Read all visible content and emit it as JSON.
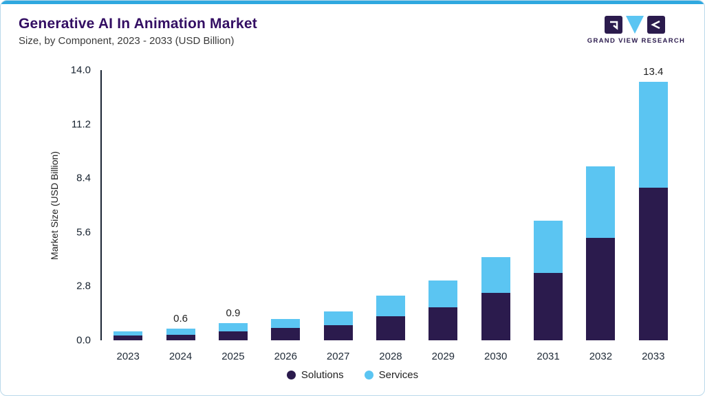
{
  "page": {
    "accent_color": "#2FA8DF",
    "border_color": "#B9D8EA"
  },
  "header": {
    "title": "Generative AI In Animation Market",
    "subtitle": "Size, by Component, 2023 - 2033 (USD Billion)"
  },
  "logo": {
    "text": "GRAND VIEW RESEARCH"
  },
  "chart_data": {
    "type": "bar",
    "stacked": true,
    "title": "Generative AI In Animation Market",
    "subtitle": "Size, by Component, 2023 - 2033 (USD Billion)",
    "xlabel": "",
    "ylabel": "Market Size (USD Billion)",
    "ylim": [
      0,
      14
    ],
    "ytick_labels": [
      "0.0",
      "2.8",
      "5.6",
      "8.4",
      "11.2",
      "14.0"
    ],
    "grid": false,
    "legend_position": "bottom",
    "categories": [
      "2023",
      "2024",
      "2025",
      "2026",
      "2027",
      "2028",
      "2029",
      "2030",
      "2031",
      "2032",
      "2033"
    ],
    "series": [
      {
        "name": "Solutions",
        "color": "#2B1B4D",
        "values": [
          0.25,
          0.3,
          0.45,
          0.65,
          0.8,
          1.25,
          1.7,
          2.45,
          3.5,
          5.3,
          7.9
        ]
      },
      {
        "name": "Services",
        "color": "#5BC5F2",
        "values": [
          0.2,
          0.3,
          0.45,
          0.45,
          0.7,
          1.05,
          1.4,
          1.85,
          2.7,
          3.7,
          5.5
        ]
      }
    ],
    "totals": [
      0.45,
      0.6,
      0.9,
      1.1,
      1.5,
      2.3,
      3.1,
      4.3,
      6.2,
      9.0,
      13.4
    ],
    "bar_total_labels": [
      "",
      "0.6",
      "0.9",
      "",
      "",
      "",
      "",
      "",
      "",
      "",
      "13.4"
    ]
  }
}
